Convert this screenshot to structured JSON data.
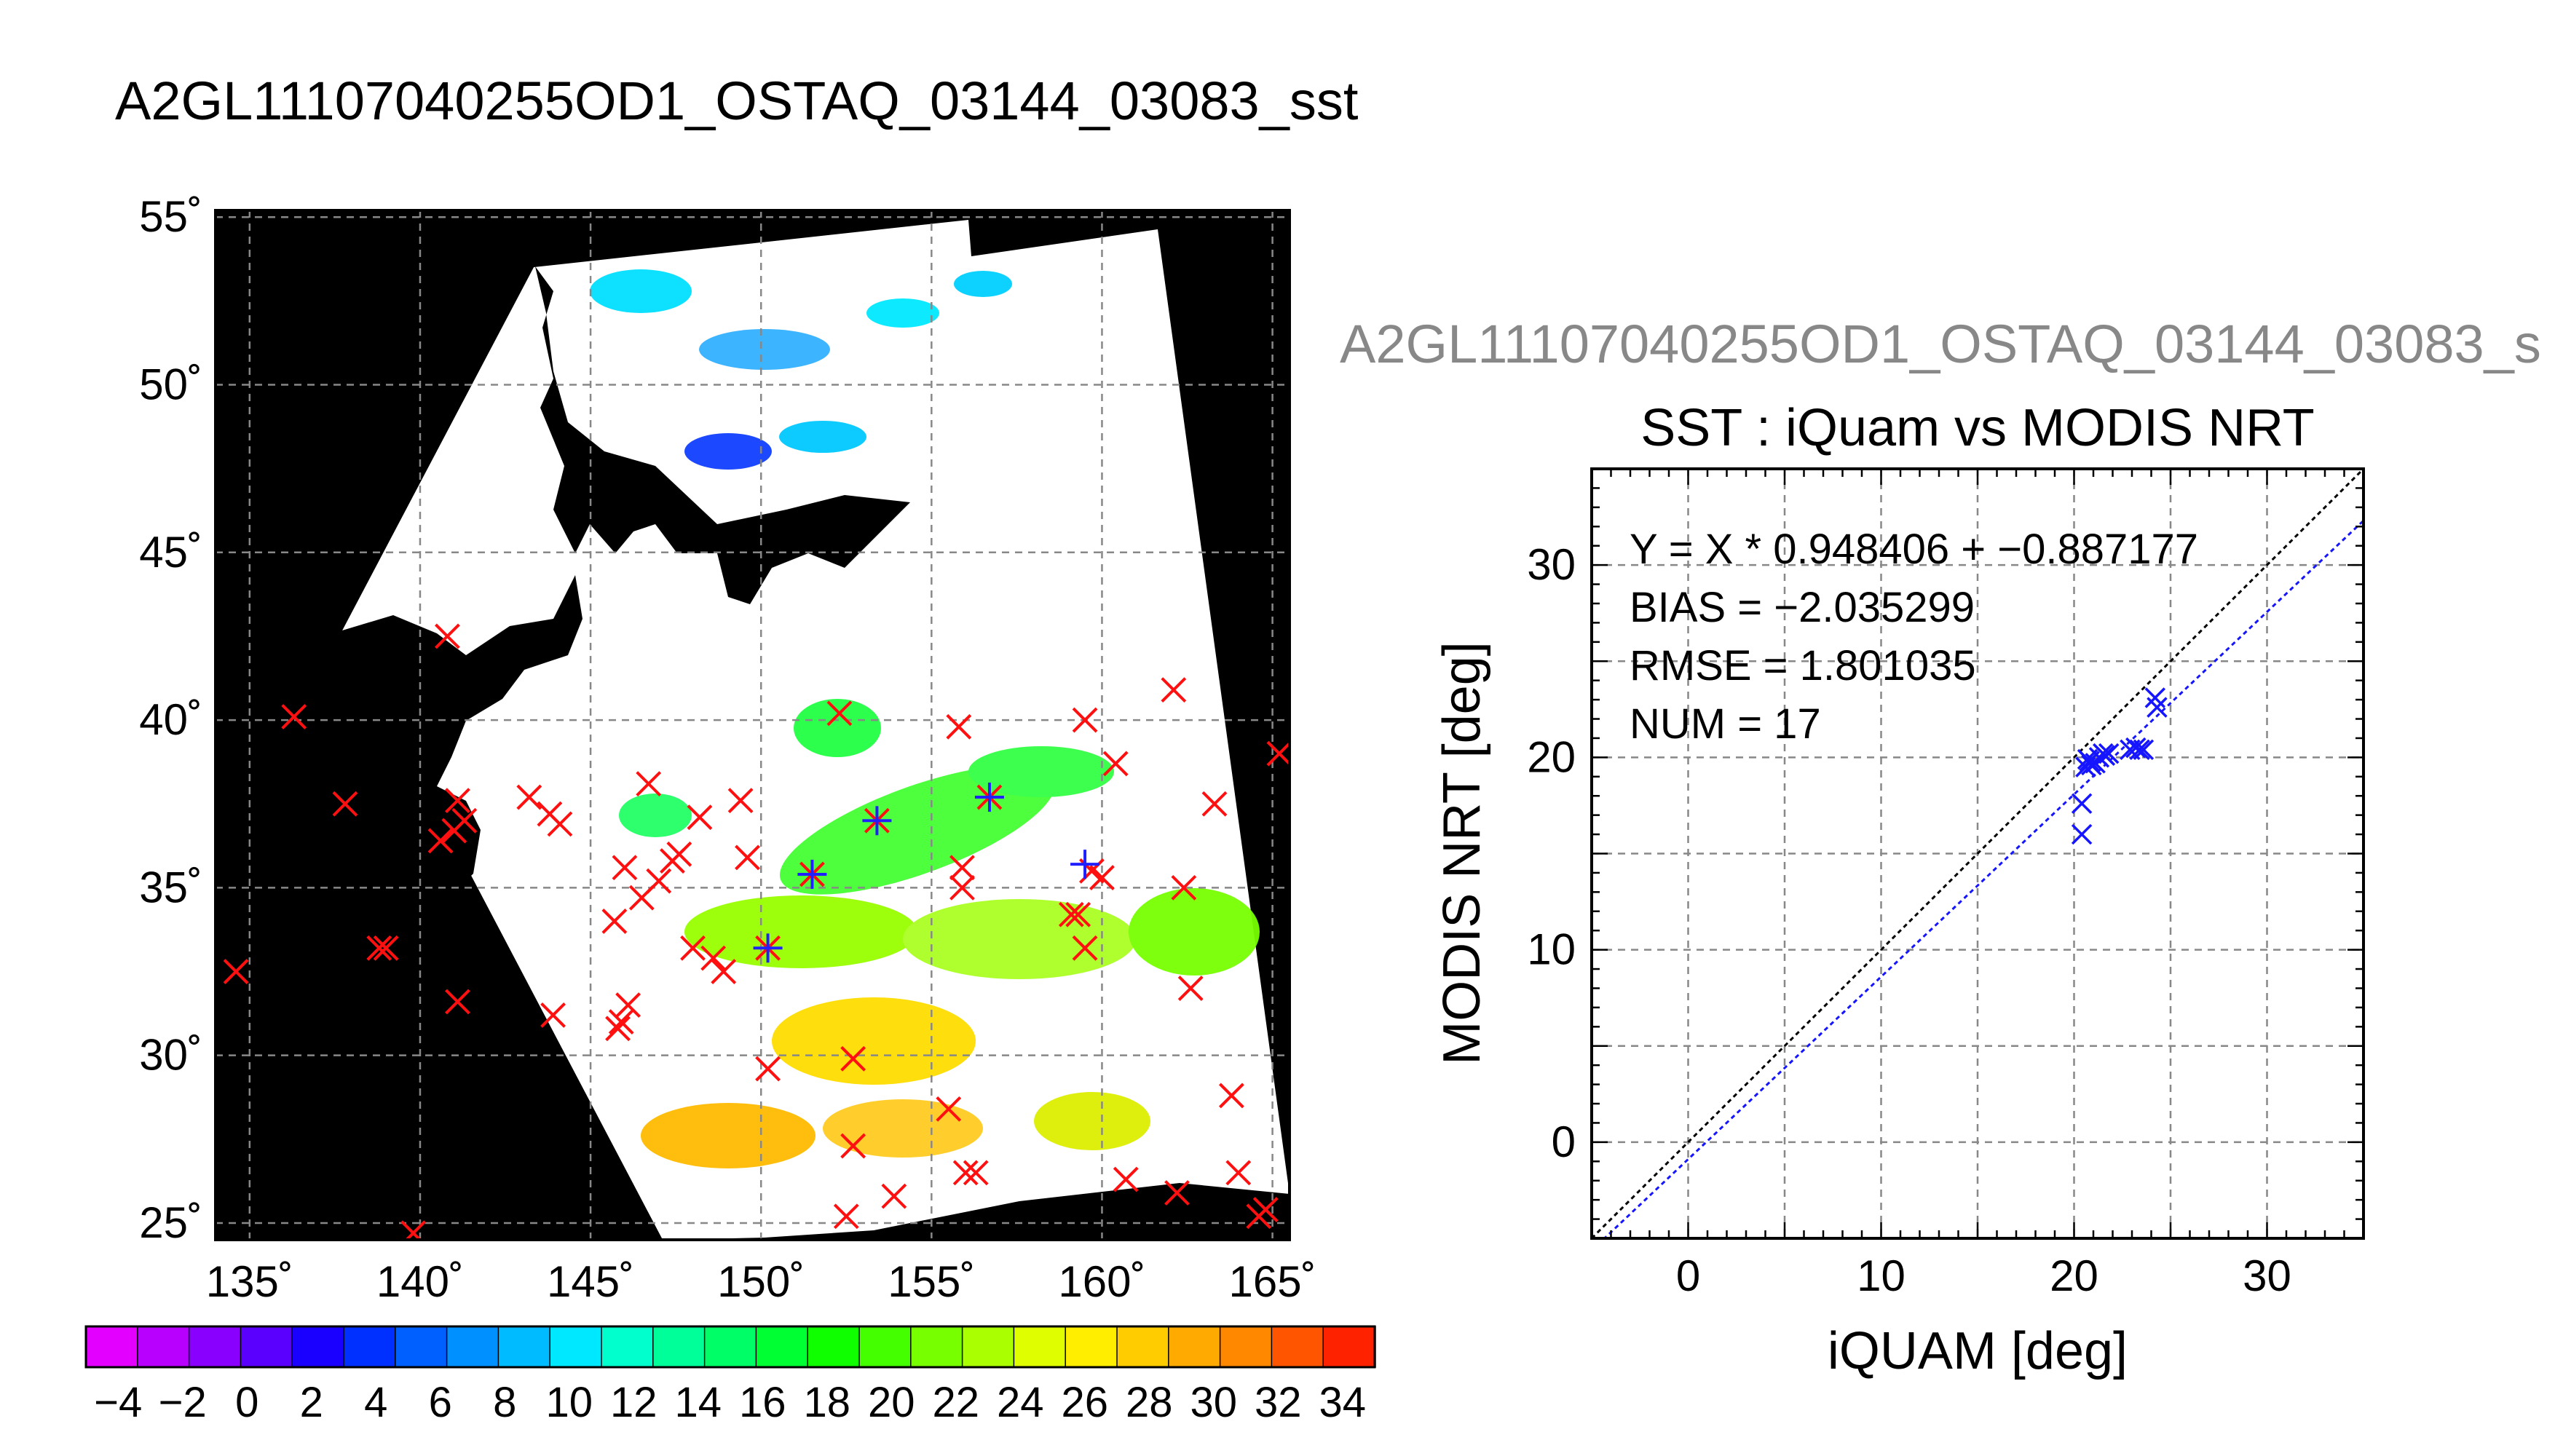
{
  "main_title": "A2GL11107040255OD1_OSTAQ_03144_03083_sst",
  "sub_title": "A2GL11107040255OD1_OSTAQ_03144_03083_s",
  "chart_data": [
    {
      "type": "map",
      "lon_ticks": [
        "135˚",
        "140˚",
        "145˚",
        "150˚",
        "155˚",
        "160˚",
        "165˚"
      ],
      "lat_ticks": [
        "55˚",
        "50˚",
        "45˚",
        "40˚",
        "35˚",
        "30˚",
        "25˚"
      ],
      "xlim": [
        134,
        165.5
      ],
      "ylim": [
        24.5,
        55.2
      ],
      "grid": true,
      "colorbar": {
        "ticks": [
          "-4",
          "-2",
          "0",
          "2",
          "4",
          "6",
          "8",
          "10",
          "12",
          "14",
          "16",
          "18",
          "20",
          "22",
          "24",
          "26",
          "28",
          "30",
          "32",
          "34"
        ],
        "range": [
          -5,
          35
        ],
        "colors": [
          "#e400ff",
          "#b800ff",
          "#8a00ff",
          "#5a00ff",
          "#1a00ff",
          "#0030ff",
          "#0060ff",
          "#0090ff",
          "#00bbff",
          "#00e8ff",
          "#00ffcc",
          "#00ff99",
          "#00ff66",
          "#00ff33",
          "#10ff00",
          "#44ff00",
          "#77ff00",
          "#aaff00",
          "#dfff00",
          "#ffee00",
          "#ffcc00",
          "#ffaa00",
          "#ff8800",
          "#ff5500",
          "#ff2200"
        ]
      },
      "iquam_points": [
        [
          136.3,
          40.1
        ],
        [
          137.8,
          37.5
        ],
        [
          138.8,
          33.2
        ],
        [
          139,
          33.2
        ],
        [
          134.6,
          32.5
        ],
        [
          139.8,
          24.7
        ],
        [
          140.8,
          42.5
        ],
        [
          140.6,
          36.4
        ],
        [
          141,
          36.7
        ],
        [
          141.1,
          37.6
        ],
        [
          141.3,
          37
        ],
        [
          141.1,
          31.6
        ],
        [
          143.2,
          37.7
        ],
        [
          143.8,
          37.2
        ],
        [
          144.1,
          36.9
        ],
        [
          143.9,
          31.2
        ],
        [
          145.7,
          34
        ],
        [
          146,
          35.6
        ],
        [
          146.5,
          34.7
        ],
        [
          147,
          35.2
        ],
        [
          147.4,
          35.8
        ],
        [
          147.6,
          36
        ],
        [
          148,
          33.2
        ],
        [
          148.2,
          37.1
        ],
        [
          148.6,
          32.9
        ],
        [
          148.9,
          32.5
        ],
        [
          149.4,
          37.6
        ],
        [
          149.6,
          35.9
        ],
        [
          145.8,
          30.8
        ],
        [
          145.9,
          31
        ],
        [
          146.1,
          31.5
        ],
        [
          146.7,
          38.1
        ],
        [
          150.2,
          33.2
        ],
        [
          150.2,
          29.6
        ],
        [
          151.5,
          35.4
        ],
        [
          152.3,
          40.2
        ],
        [
          153.4,
          37
        ],
        [
          152.7,
          29.9
        ],
        [
          152.7,
          27.3
        ],
        [
          152.5,
          25.2
        ],
        [
          153.9,
          25.8
        ],
        [
          155.5,
          28.4
        ],
        [
          155.8,
          39.8
        ],
        [
          155.9,
          35.6
        ],
        [
          155.9,
          35
        ],
        [
          156,
          26.5
        ],
        [
          156.3,
          26.5
        ],
        [
          156.7,
          37.7
        ],
        [
          159.1,
          34.2
        ],
        [
          159.3,
          34.2
        ],
        [
          159.7,
          35.5
        ],
        [
          159.5,
          40
        ],
        [
          160,
          35.3
        ],
        [
          160.4,
          38.7
        ],
        [
          159.5,
          33.2
        ],
        [
          160.7,
          26.3
        ],
        [
          162.1,
          40.9
        ],
        [
          162.4,
          35
        ],
        [
          162.6,
          32
        ],
        [
          162.2,
          25.9
        ],
        [
          163.3,
          37.5
        ],
        [
          163.8,
          28.8
        ],
        [
          164,
          26.5
        ],
        [
          164.6,
          25.2
        ],
        [
          164.8,
          25.4
        ],
        [
          165.2,
          39
        ]
      ],
      "matched_points": [
        [
          150.2,
          33.2
        ],
        [
          151.5,
          35.4
        ],
        [
          153.4,
          37
        ],
        [
          156.7,
          37.7
        ],
        [
          159.5,
          35.7
        ]
      ]
    },
    {
      "type": "scatter",
      "title": "SST : iQuam vs MODIS NRT",
      "xlabel": "iQUAM [deg]",
      "ylabel": "MODIS NRT [deg]",
      "xlim": [
        -5,
        35
      ],
      "ylim": [
        -5,
        35
      ],
      "x_ticks": [
        "0",
        "10",
        "20",
        "30"
      ],
      "y_ticks": [
        "0",
        "10",
        "20",
        "30"
      ],
      "grid": true,
      "stats": [
        "Y = X * 0.948406 + −0.887177",
        "BIAS = −2.035299",
        "RMSE = 1.801035",
        "NUM = 17"
      ],
      "fit": {
        "slope": 0.948406,
        "intercept": -0.887177
      },
      "points": [
        [
          20.4,
          17.6
        ],
        [
          20.4,
          16
        ],
        [
          20.6,
          19.5
        ],
        [
          20.7,
          19.9
        ],
        [
          20.8,
          19.8
        ],
        [
          20.9,
          19.6
        ],
        [
          21.1,
          19.7
        ],
        [
          21.3,
          20
        ],
        [
          21.5,
          20.2
        ],
        [
          21.6,
          20.1
        ],
        [
          21.8,
          20.2
        ],
        [
          22.9,
          20.4
        ],
        [
          23.2,
          20.5
        ],
        [
          23.4,
          20.4
        ],
        [
          23.6,
          20.4
        ],
        [
          24.2,
          23.1
        ],
        [
          24.3,
          22.6
        ]
      ]
    }
  ]
}
